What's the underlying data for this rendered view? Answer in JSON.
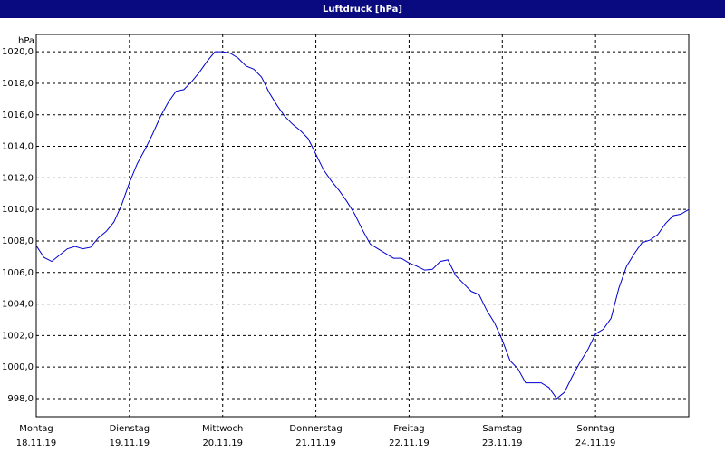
{
  "chart_data": {
    "type": "line",
    "title": "Luftdruck [hPa]",
    "y_unit": "hPa",
    "days": [
      {
        "name": "Montag",
        "date": "18.11.19"
      },
      {
        "name": "Dienstag",
        "date": "19.11.19"
      },
      {
        "name": "Mittwoch",
        "date": "20.11.19"
      },
      {
        "name": "Donnerstag",
        "date": "21.11.19"
      },
      {
        "name": "Freitag",
        "date": "22.11.19"
      },
      {
        "name": "Samstag",
        "date": "23.11.19"
      },
      {
        "name": "Sonntag",
        "date": "24.11.19"
      }
    ],
    "color": "#0000cc",
    "values": [
      1007.7,
      1006.95,
      1006.7,
      1007.1,
      1007.5,
      1007.65,
      1007.5,
      1007.6,
      1008.2,
      1008.6,
      1009.2,
      1010.3,
      1011.7,
      1012.9,
      1013.8,
      1014.8,
      1015.9,
      1016.8,
      1017.5,
      1017.6,
      1018.1,
      1018.7,
      1019.4,
      1020.0,
      1020.0,
      1019.9,
      1019.6,
      1019.1,
      1018.9,
      1018.4,
      1017.4,
      1016.6,
      1015.9,
      1015.4,
      1015.0,
      1014.5,
      1013.5,
      1012.5,
      1011.8,
      1011.2,
      1010.5,
      1009.7,
      1008.7,
      1007.8,
      1007.5,
      1007.2,
      1006.9,
      1006.9,
      1006.6,
      1006.4,
      1006.15,
      1006.2,
      1006.7,
      1006.8,
      1005.8,
      1005.3,
      1004.8,
      1004.6,
      1003.6,
      1002.8,
      1001.7,
      1000.4,
      999.9,
      999.0,
      999.0,
      999.0,
      998.7,
      998.0,
      998.4,
      999.4,
      1000.3,
      1001.1,
      1002.1,
      1002.4,
      1003.1,
      1005.0,
      1006.4,
      1007.2,
      1007.9,
      1008.05,
      1008.4,
      1009.1,
      1009.6,
      1009.7,
      1010.0
    ],
    "ylim": [
      996.85,
      1021.1
    ],
    "yticks": [
      {
        "value": 998,
        "label": "998,0"
      },
      {
        "value": 1000,
        "label": "1000,0"
      },
      {
        "value": 1002,
        "label": "1002,0"
      },
      {
        "value": 1004,
        "label": "1004,0"
      },
      {
        "value": 1006,
        "label": "1006,0"
      },
      {
        "value": 1008,
        "label": "1008,0"
      },
      {
        "value": 1010,
        "label": "1010,0"
      },
      {
        "value": 1012,
        "label": "1012,0"
      },
      {
        "value": 1014,
        "label": "1014,0"
      },
      {
        "value": 1016,
        "label": "1016,0"
      },
      {
        "value": 1018,
        "label": "1018,0"
      },
      {
        "value": 1020,
        "label": "1020,0"
      }
    ],
    "grid": true
  }
}
